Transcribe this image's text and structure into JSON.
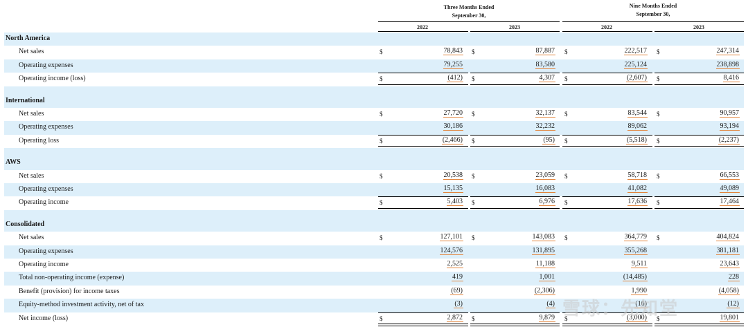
{
  "header": {
    "group1": [
      "Three Months Ended",
      "September 30,"
    ],
    "group2": [
      "Nine Months Ended",
      "September 30,"
    ],
    "years": [
      "2022",
      "2023",
      "2022",
      "2023"
    ]
  },
  "currency_symbol": "$",
  "sections": [
    {
      "title": "North America",
      "rows": [
        {
          "label": "Net sales",
          "values": [
            "78,843",
            "87,887",
            "222,517",
            "247,314"
          ],
          "dollar": true
        },
        {
          "label": "Operating expenses",
          "values": [
            "79,255",
            "83,580",
            "225,124",
            "238,898"
          ],
          "dollar": false
        },
        {
          "label": "Operating income (loss)",
          "values": [
            "(412)",
            "4,307",
            "(2,607)",
            "8,416"
          ],
          "dollar": true,
          "total": true
        }
      ]
    },
    {
      "title": "International",
      "rows": [
        {
          "label": "Net sales",
          "values": [
            "27,720",
            "32,137",
            "83,544",
            "90,957"
          ],
          "dollar": true
        },
        {
          "label": "Operating expenses",
          "values": [
            "30,186",
            "32,232",
            "89,062",
            "93,194"
          ],
          "dollar": false
        },
        {
          "label": "Operating loss",
          "values": [
            "(2,466)",
            "(95)",
            "(5,518)",
            "(2,237)"
          ],
          "dollar": true,
          "total": true
        }
      ]
    },
    {
      "title": "AWS",
      "rows": [
        {
          "label": "Net sales",
          "values": [
            "20,538",
            "23,059",
            "58,718",
            "66,553"
          ],
          "dollar": true
        },
        {
          "label": "Operating expenses",
          "values": [
            "15,135",
            "16,083",
            "41,082",
            "49,089"
          ],
          "dollar": false
        },
        {
          "label": "Operating income",
          "values": [
            "5,403",
            "6,976",
            "17,636",
            "17,464"
          ],
          "dollar": true,
          "total": true
        }
      ]
    },
    {
      "title": "Consolidated",
      "rows": [
        {
          "label": "Net sales",
          "values": [
            "127,101",
            "143,083",
            "364,779",
            "404,824"
          ],
          "dollar": true
        },
        {
          "label": "Operating expenses",
          "values": [
            "124,576",
            "131,895",
            "355,268",
            "381,181"
          ],
          "dollar": false
        },
        {
          "label": "Operating income",
          "values": [
            "2,525",
            "11,188",
            "9,511",
            "23,643"
          ],
          "dollar": false
        },
        {
          "label": "Total non-operating income (expense)",
          "values": [
            "419",
            "1,001",
            "(14,485)",
            "228"
          ],
          "dollar": false
        },
        {
          "label": "Benefit (provision) for income taxes",
          "values": [
            "(69)",
            "(2,306)",
            "1,990",
            "(4,058)"
          ],
          "dollar": false
        },
        {
          "label": "Equity-method investment activity, net of tax",
          "values": [
            "(3)",
            "(4)",
            "(16)",
            "(12)"
          ],
          "dollar": false
        },
        {
          "label": "Net income (loss)",
          "values": [
            "2,872",
            "9,879",
            "(3,000)",
            "19,801"
          ],
          "dollar": true,
          "total": true
        }
      ]
    }
  ],
  "watermark": "雪球：先知堂"
}
